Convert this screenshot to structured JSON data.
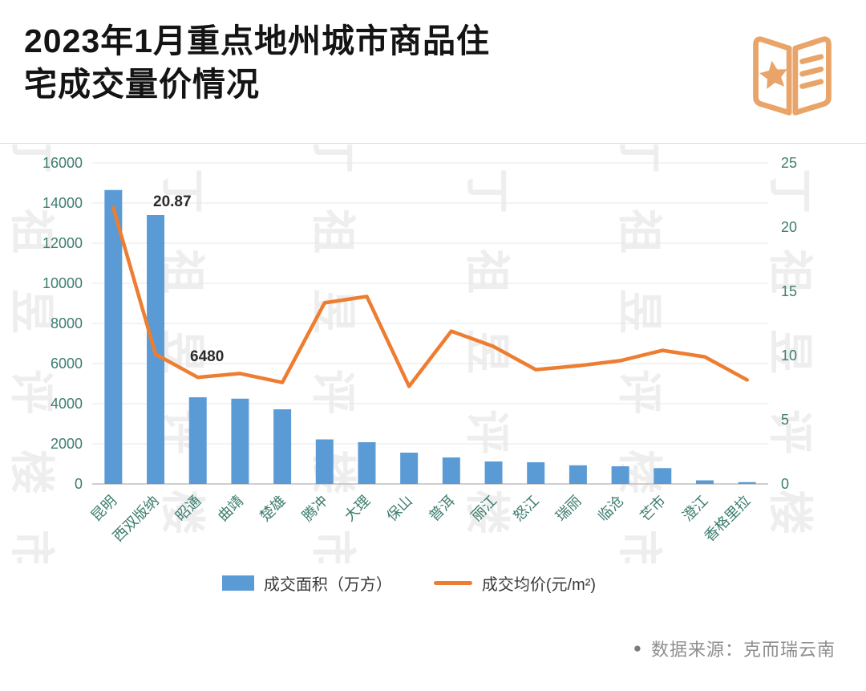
{
  "header": {
    "title_lines": [
      "2023年1月重点地州城市商品住",
      "宅成交量价情况"
    ]
  },
  "watermark": {
    "text": "丁祖昱评楼市"
  },
  "chart_data": {
    "type": "bar",
    "subtype": "bar+line combo",
    "categories": [
      "昆明",
      "西双版纳",
      "昭通",
      "曲靖",
      "楚雄",
      "腾冲",
      "大理",
      "保山",
      "普洱",
      "丽江",
      "怒江",
      "瑞丽",
      "临沧",
      "芒市",
      "澄江",
      "香格里拉"
    ],
    "series": [
      {
        "name": "成交面积（万方）",
        "type": "bar",
        "axis": "left",
        "color": "#5B9BD5",
        "values": [
          14650,
          13400,
          4320,
          4250,
          3720,
          2220,
          2080,
          1560,
          1320,
          1120,
          1080,
          930,
          880,
          790,
          180,
          90
        ]
      },
      {
        "name": "成交均价(元/m²)",
        "type": "line",
        "axis": "right",
        "color": "#ED7D31",
        "values": [
          21.5,
          10.1,
          8.3,
          8.6,
          7.9,
          14.1,
          14.6,
          7.6,
          11.9,
          10.7,
          8.9,
          9.2,
          9.6,
          10.4,
          9.9,
          8.1
        ]
      }
    ],
    "left_axis": {
      "min": 0,
      "max": 16000,
      "step": 2000,
      "ticks": [
        0,
        2000,
        4000,
        6000,
        8000,
        10000,
        12000,
        14000,
        16000
      ]
    },
    "right_axis": {
      "min": 0,
      "max": 25,
      "step": 5,
      "ticks": [
        0,
        5,
        10,
        15,
        20,
        25
      ]
    },
    "grid": true,
    "legend_position": "bottom",
    "annotations": [
      {
        "text": "20.87",
        "x": 191,
        "y": 77
      },
      {
        "text": "6480",
        "x": 237,
        "y": 270
      }
    ]
  },
  "legend": {
    "items": [
      {
        "label": "成交面积（万方）",
        "type": "bar",
        "color": "#5B9BD5"
      },
      {
        "label": "成交均价(元/m²)",
        "type": "line",
        "color": "#ED7D31"
      }
    ]
  },
  "footer": {
    "bullet": "●",
    "text": "数据来源：克而瑞云南"
  },
  "colors": {
    "bar": "#5B9BD5",
    "line": "#ED7D31",
    "axis_text": "#3e7d70",
    "logo": "#E9A469"
  }
}
